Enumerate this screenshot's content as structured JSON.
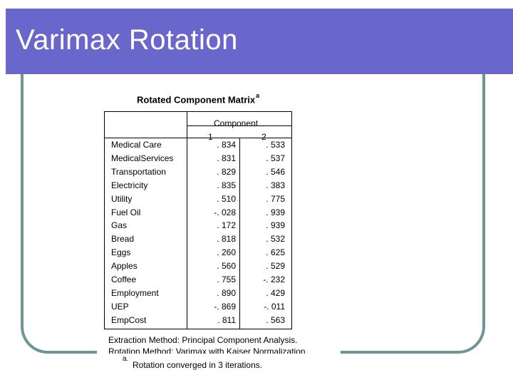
{
  "slide": {
    "title": "Varimax Rotation"
  },
  "matrix": {
    "title": "Rotated Component Matrix",
    "title_marker": "a",
    "component_header": "Component",
    "columns": [
      "1",
      "2"
    ],
    "rows": [
      {
        "label": "Medical Care",
        "c1": ". 834",
        "c2": ". 533"
      },
      {
        "label": "MedicalServices",
        "c1": ". 831",
        "c2": ". 537"
      },
      {
        "label": "Transportation",
        "c1": ". 829",
        "c2": ". 546"
      },
      {
        "label": "Electricity",
        "c1": ". 835",
        "c2": ". 383"
      },
      {
        "label": "Utility",
        "c1": ". 510",
        "c2": ". 775"
      },
      {
        "label": "Fuel Oil",
        "c1": "-. 028",
        "c2": ". 939"
      },
      {
        "label": "Gas",
        "c1": ". 172",
        "c2": ". 939"
      },
      {
        "label": "Bread",
        "c1": ". 818",
        "c2": ". 532"
      },
      {
        "label": "Eggs",
        "c1": ". 260",
        "c2": ". 625"
      },
      {
        "label": "Apples",
        "c1": ". 560",
        "c2": ". 529"
      },
      {
        "label": "Coffee",
        "c1": ". 755",
        "c2": "-. 232"
      },
      {
        "label": "Employment",
        "c1": ". 890",
        "c2": ". 429"
      },
      {
        "label": "UEP",
        "c1": "-. 869",
        "c2": "-. 011"
      },
      {
        "label": "EmpCost",
        "c1": ". 811",
        "c2": ". 563"
      }
    ],
    "footnotes": {
      "extraction": "Extraction Method: Principal Component Analysis.",
      "rotation": "Rotation Method: Varimax with Kaiser Normalization.",
      "marker": "a.",
      "converged": "Rotation converged in 3 iterations."
    }
  }
}
